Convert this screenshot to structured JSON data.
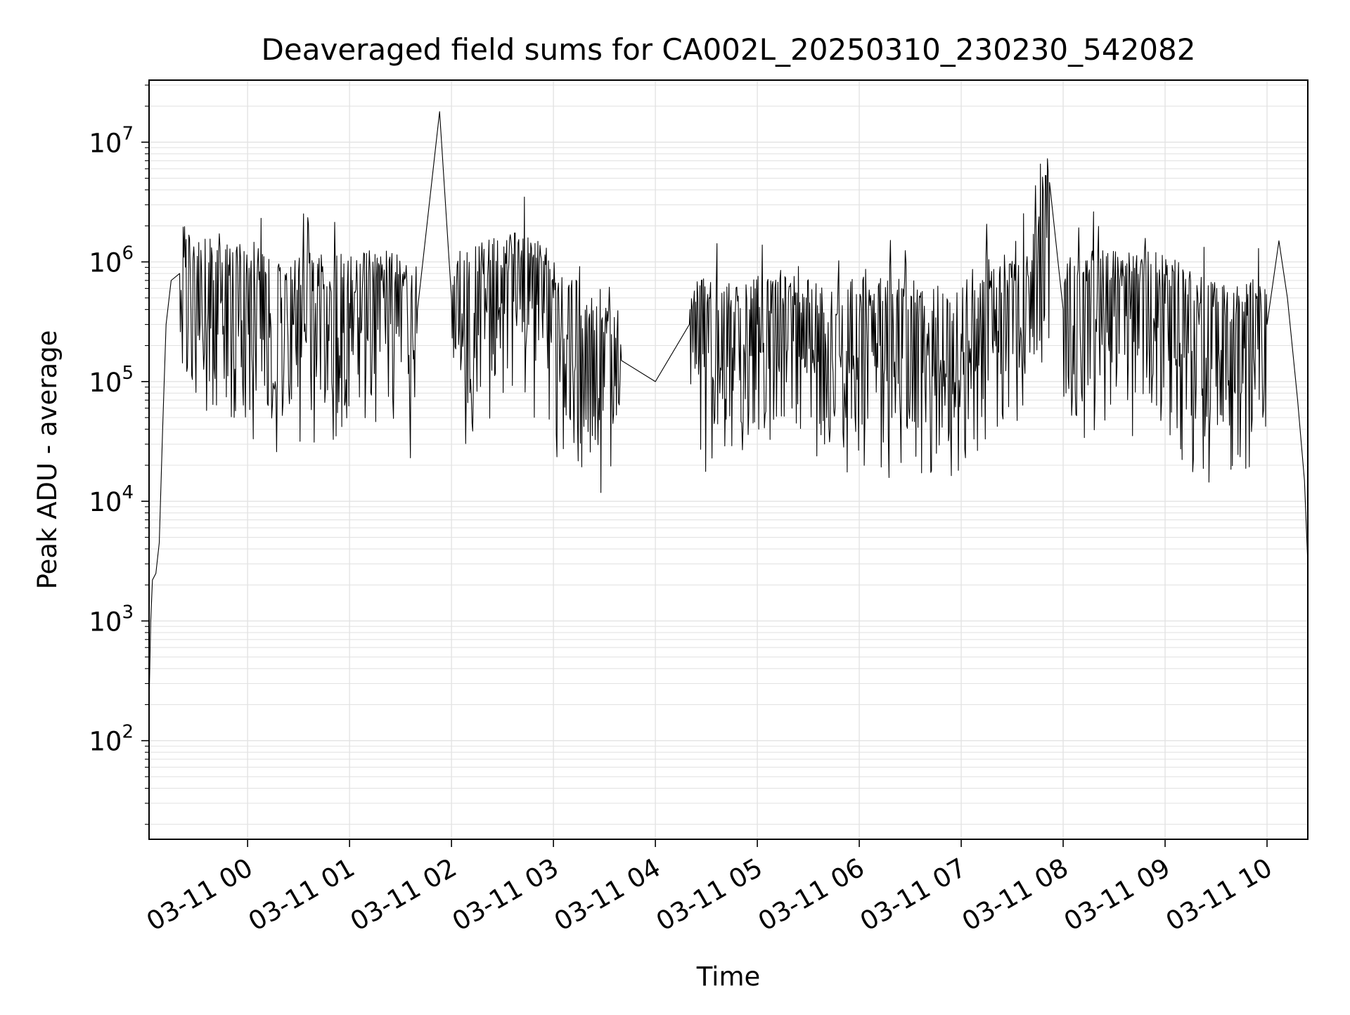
{
  "chart_data": {
    "type": "line",
    "title": "Deaveraged field sums for CA002L_20250310_230230_542082",
    "xlabel": "Time",
    "ylabel": "Peak ADU - average",
    "yscale": "log",
    "ylim": [
      15,
      33000000
    ],
    "xlim": [
      "03-10 23:02",
      "03-11 10:24"
    ],
    "grid": true,
    "x_tick_labels": [
      "03-11 00",
      "03-11 01",
      "03-11 02",
      "03-11 03",
      "03-11 04",
      "03-11 05",
      "03-11 06",
      "03-11 07",
      "03-11 08",
      "03-11 09",
      "03-11 10"
    ],
    "y_ticks": [
      {
        "base": "10",
        "exp": "2",
        "value": 100
      },
      {
        "base": "10",
        "exp": "3",
        "value": 1000
      },
      {
        "base": "10",
        "exp": "4",
        "value": 10000
      },
      {
        "base": "10",
        "exp": "5",
        "value": 100000
      },
      {
        "base": "10",
        "exp": "6",
        "value": 1000000
      },
      {
        "base": "10",
        "exp": "7",
        "value": 10000000
      }
    ],
    "series": [
      {
        "line_color": "#000000",
        "x": [
          "03-10 23:02",
          "03-10 23:03",
          "03-10 23:04",
          "03-10 23:06",
          "03-10 23:08",
          "03-10 23:10",
          "03-10 23:12",
          "03-10 23:15",
          "03-10 23:20",
          "03-10 23:30",
          "03-10 23:40",
          "03-10 23:50",
          "03-11 00:00",
          "03-11 00:20",
          "03-11 00:40",
          "03-11 01:00",
          "03-11 01:20",
          "03-11 01:40",
          "03-11 01:53",
          "03-11 02:00",
          "03-11 02:20",
          "03-11 02:40",
          "03-11 03:00",
          "03-11 03:20",
          "03-11 03:40",
          "03-11 04:00",
          "03-11 04:20",
          "03-11 04:40",
          "03-11 05:00",
          "03-11 05:20",
          "03-11 05:40",
          "03-11 06:00",
          "03-11 06:20",
          "03-11 06:40",
          "03-11 07:00",
          "03-11 07:10",
          "03-11 07:20",
          "03-11 07:40",
          "03-11 07:52",
          "03-11 08:00",
          "03-11 08:20",
          "03-11 08:40",
          "03-11 09:00",
          "03-11 09:20",
          "03-11 09:40",
          "03-11 10:00",
          "03-11 10:07",
          "03-11 10:12",
          "03-11 10:18",
          "03-11 10:22",
          "03-11 10:24"
        ],
        "y": [
          200,
          1000,
          2200,
          2500,
          4500,
          40000,
          300000,
          700000,
          800000,
          600000,
          700000,
          600000,
          500000,
          500000,
          450000,
          450000,
          500000,
          400000,
          18000000,
          500000,
          600000,
          700000,
          500000,
          200000,
          150000,
          100000,
          300000,
          250000,
          300000,
          300000,
          250000,
          300000,
          300000,
          250000,
          250000,
          500000,
          400000,
          500000,
          4600000,
          400000,
          500000,
          500000,
          450000,
          300000,
          250000,
          300000,
          1500000,
          500000,
          70000,
          15000,
          3000
        ]
      }
    ]
  }
}
